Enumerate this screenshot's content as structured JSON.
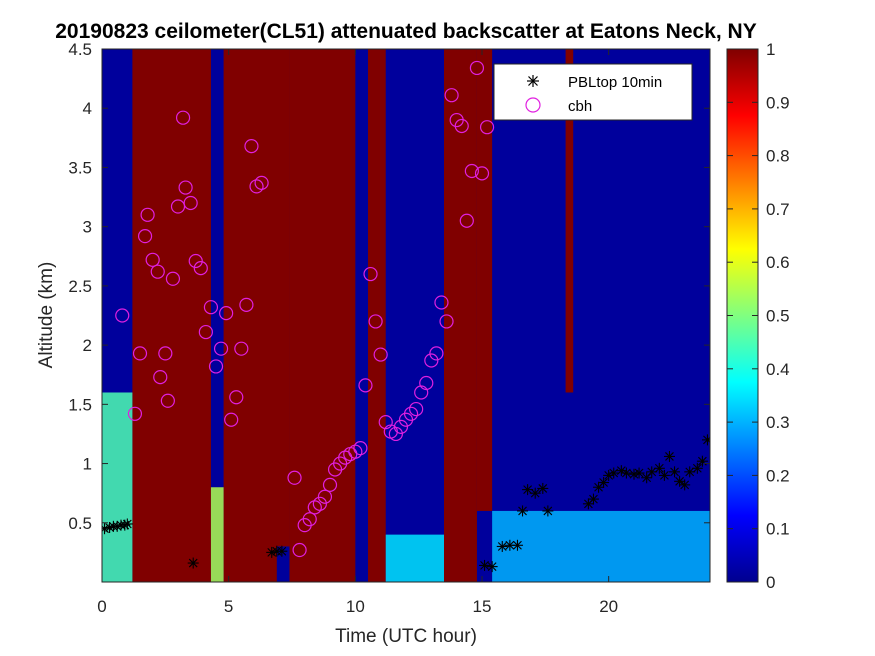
{
  "chart_data": {
    "type": "heatmap",
    "title": "20190823 ceilometer(CL51) attenuated backscatter at Eatons Neck, NY",
    "xlabel": "Time (UTC hour)",
    "ylabel": "Altitude (km)",
    "xlim": [
      0,
      24
    ],
    "ylim": [
      0,
      4.5
    ],
    "xticks": [
      0,
      5,
      10,
      15,
      20
    ],
    "yticks": [
      0.5,
      1,
      1.5,
      2,
      2.5,
      3,
      3.5,
      4,
      4.5
    ],
    "colorbar": {
      "min": 0,
      "max": 1,
      "ticks": [
        0,
        0.1,
        0.2,
        0.3,
        0.4,
        0.5,
        0.6,
        0.7,
        0.8,
        0.9,
        1
      ],
      "colormap": "jet"
    },
    "legend": {
      "location": "top-right"
    },
    "heatmap_regions": [
      {
        "t0": 1.2,
        "t1": 4.3,
        "base_km": 0.0,
        "value": 1.0
      },
      {
        "t0": 4.8,
        "t1": 6.9,
        "base_km": 0.0,
        "value": 1.0
      },
      {
        "t0": 6.2,
        "t1": 7.4,
        "base_km": 0.3,
        "value": 1.0
      },
      {
        "t0": 7.4,
        "t1": 10.0,
        "base_km": 0.0,
        "value": 1.0
      },
      {
        "t0": 10.5,
        "t1": 11.2,
        "base_km": 0.0,
        "value": 1.0
      },
      {
        "t0": 13.5,
        "t1": 14.8,
        "base_km": 0.0,
        "value": 1.0
      },
      {
        "t0": 14.8,
        "t1": 15.4,
        "base_km": 0.6,
        "value": 1.0
      },
      {
        "t0": 18.3,
        "t1": 18.6,
        "base_km": 1.6,
        "value": 1.0
      }
    ],
    "series": [
      {
        "name": "PBLtop 10min",
        "marker": "asterisk",
        "color": "#000000",
        "x": [
          0.1,
          0.3,
          0.45,
          0.6,
          0.75,
          0.9,
          1.0,
          3.6,
          6.7,
          6.9,
          7.1,
          15.1,
          15.4,
          15.8,
          16.1,
          16.4,
          16.6,
          16.8,
          17.1,
          17.4,
          17.6,
          19.2,
          19.4,
          19.6,
          19.8,
          20.0,
          20.2,
          20.5,
          20.7,
          21.0,
          21.2,
          21.5,
          21.7,
          22.0,
          22.2,
          22.4,
          22.6,
          22.8,
          23.0,
          23.2,
          23.5,
          23.7,
          23.9
        ],
        "y": [
          0.45,
          0.46,
          0.47,
          0.47,
          0.48,
          0.48,
          0.49,
          0.16,
          0.25,
          0.26,
          0.26,
          0.14,
          0.13,
          0.3,
          0.31,
          0.31,
          0.6,
          0.78,
          0.75,
          0.79,
          0.6,
          0.66,
          0.7,
          0.8,
          0.84,
          0.9,
          0.92,
          0.94,
          0.92,
          0.91,
          0.92,
          0.88,
          0.93,
          0.96,
          0.9,
          1.06,
          0.93,
          0.85,
          0.82,
          0.93,
          0.96,
          1.02,
          1.2
        ]
      },
      {
        "name": "cbh",
        "marker": "circle",
        "color": "#E020E0",
        "x": [
          0.8,
          1.3,
          1.5,
          1.7,
          1.8,
          2.0,
          2.2,
          2.3,
          2.5,
          2.6,
          2.8,
          3.0,
          3.2,
          3.3,
          3.5,
          3.7,
          3.9,
          4.1,
          4.3,
          4.5,
          4.7,
          4.9,
          5.1,
          5.3,
          5.5,
          5.7,
          5.9,
          6.1,
          6.3,
          7.6,
          7.8,
          8.0,
          8.2,
          8.4,
          8.6,
          8.8,
          9.0,
          9.2,
          9.4,
          9.6,
          9.8,
          10.0,
          10.2,
          10.4,
          10.6,
          10.8,
          11.0,
          11.2,
          11.4,
          11.6,
          11.8,
          12.0,
          12.2,
          12.4,
          12.6,
          12.8,
          13.0,
          13.2,
          13.4,
          13.6,
          13.8,
          14.0,
          14.2,
          14.4,
          14.6,
          14.8,
          15.0,
          15.2
        ],
        "y": [
          2.25,
          1.42,
          1.93,
          2.92,
          3.1,
          2.72,
          2.62,
          1.73,
          1.93,
          1.53,
          2.56,
          3.17,
          3.92,
          3.33,
          3.2,
          2.71,
          2.65,
          2.11,
          2.32,
          1.82,
          1.97,
          2.27,
          1.37,
          1.56,
          1.97,
          2.34,
          3.68,
          3.34,
          3.37,
          0.88,
          0.27,
          0.48,
          0.53,
          0.63,
          0.66,
          0.72,
          0.82,
          0.95,
          1.0,
          1.05,
          1.08,
          1.1,
          1.13,
          1.66,
          2.6,
          2.2,
          1.92,
          1.35,
          1.27,
          1.25,
          1.31,
          1.37,
          1.42,
          1.46,
          1.6,
          1.68,
          1.87,
          1.93,
          2.36,
          2.2,
          4.11,
          3.9,
          3.85,
          3.05,
          3.47,
          4.34,
          3.45,
          3.84
        ]
      }
    ]
  }
}
